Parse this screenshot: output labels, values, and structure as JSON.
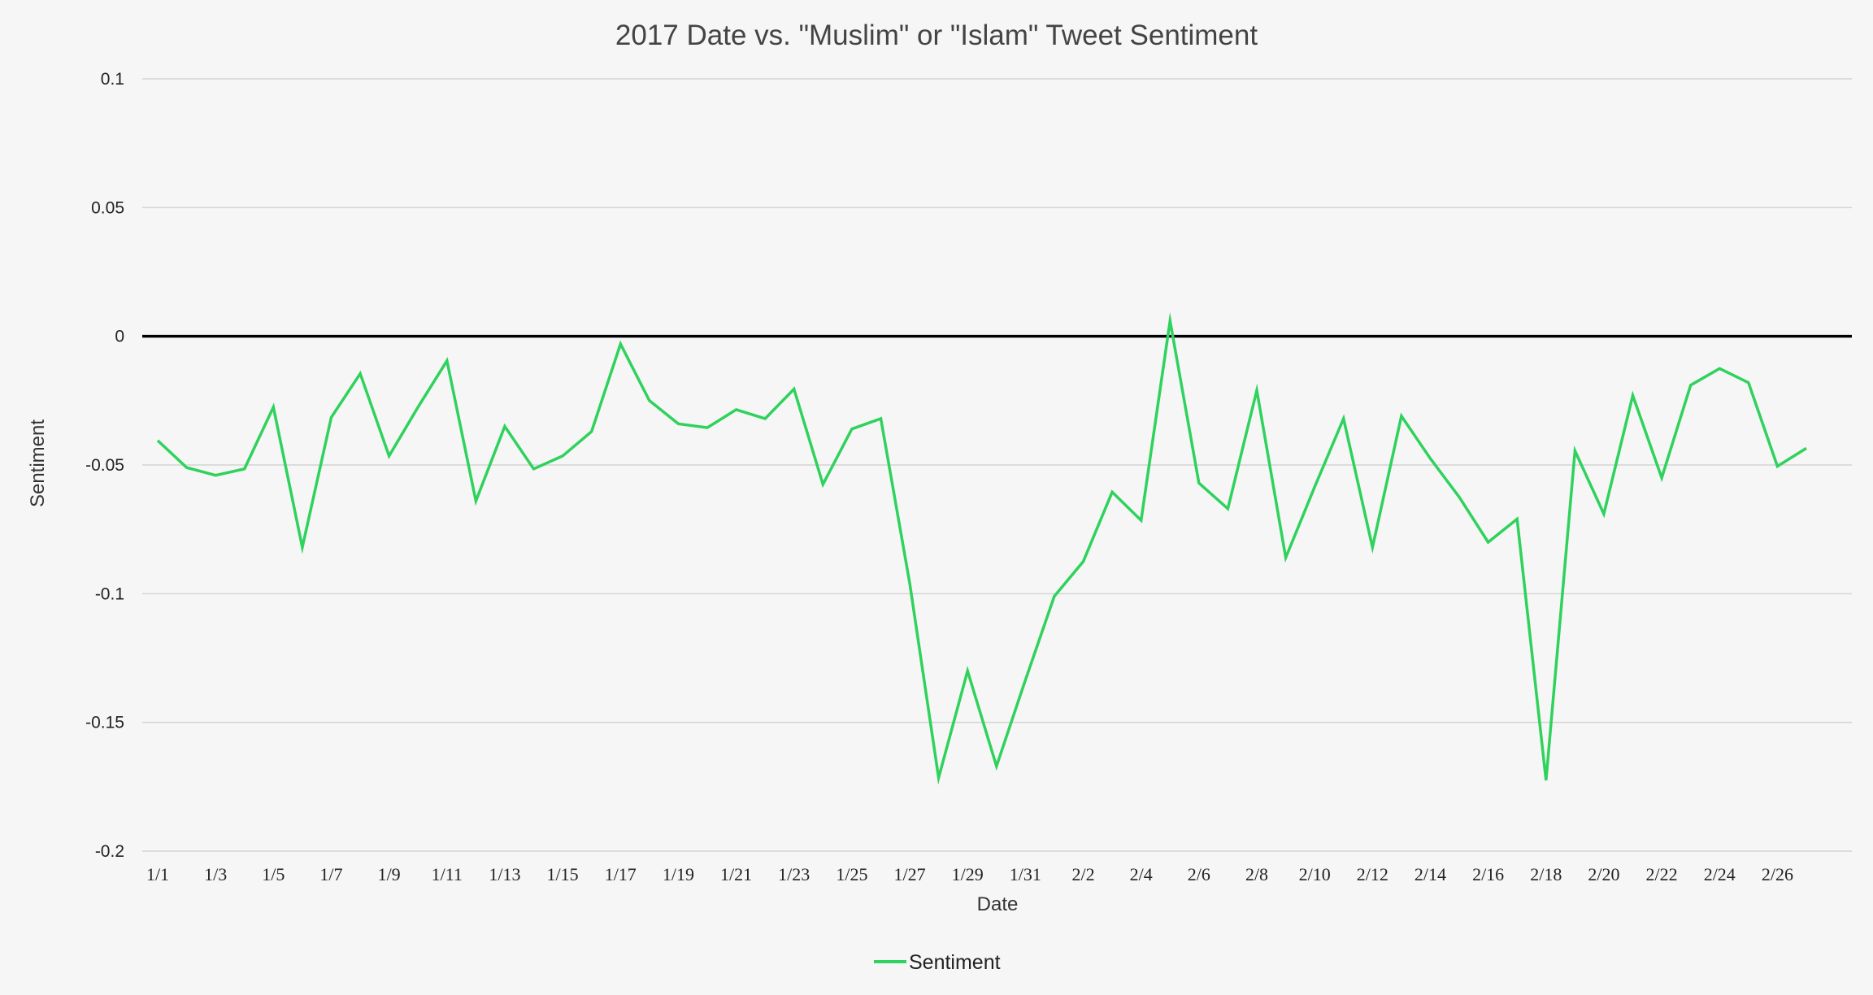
{
  "chart_data": {
    "type": "line",
    "title": "2017 Date vs. \"Muslim\" or \"Islam\" Tweet Sentiment",
    "xlabel": "Date",
    "ylabel": "Sentiment",
    "ylim": [
      -0.2,
      0.1
    ],
    "yticks": [
      "0.1",
      "0.05",
      "0",
      "-0.05",
      "-0.1",
      "-0.15",
      "-0.2"
    ],
    "ytick_values": [
      0.1,
      0.05,
      0,
      -0.05,
      -0.1,
      -0.15,
      -0.2
    ],
    "zero_line": true,
    "grid": true,
    "legend_position": "bottom",
    "colors": {
      "series": "#2fd25c",
      "zero_line": "#000000",
      "grid": "#d4d4d4",
      "background": "#f6f6f6"
    },
    "categories": [
      "1/1",
      "1/2",
      "1/3",
      "1/4",
      "1/5",
      "1/6",
      "1/7",
      "1/8",
      "1/9",
      "1/10",
      "1/11",
      "1/12",
      "1/13",
      "1/14",
      "1/15",
      "1/16",
      "1/17",
      "1/18",
      "1/19",
      "1/20",
      "1/21",
      "1/22",
      "1/23",
      "1/24",
      "1/25",
      "1/26",
      "1/27",
      "1/28",
      "1/29",
      "1/30",
      "1/31",
      "2/1",
      "2/2",
      "2/3",
      "2/4",
      "2/5",
      "2/6",
      "2/7",
      "2/8",
      "2/9",
      "2/10",
      "2/11",
      "2/12",
      "2/13",
      "2/14",
      "2/15",
      "2/16",
      "2/17",
      "2/18",
      "2/19",
      "2/20",
      "2/21",
      "2/22",
      "2/23",
      "2/24",
      "2/25",
      "2/26",
      "2/27"
    ],
    "xtick_labels": [
      "1/1",
      "1/3",
      "1/5",
      "1/7",
      "1/9",
      "1/11",
      "1/13",
      "1/15",
      "1/17",
      "1/19",
      "1/21",
      "1/23",
      "1/25",
      "1/27",
      "1/29",
      "1/31",
      "2/2",
      "2/4",
      "2/6",
      "2/8",
      "2/10",
      "2/12",
      "2/14",
      "2/16",
      "2/18",
      "2/20",
      "2/22",
      "2/24",
      "2/26"
    ],
    "series": [
      {
        "name": "Sentiment",
        "values": [
          -0.0405,
          -0.051,
          -0.054,
          -0.0515,
          -0.0275,
          -0.082,
          -0.0315,
          -0.0145,
          -0.0465,
          -0.0275,
          -0.0095,
          -0.064,
          -0.035,
          -0.0515,
          -0.0465,
          -0.037,
          -0.003,
          -0.025,
          -0.034,
          -0.0355,
          -0.0285,
          -0.032,
          -0.0205,
          -0.0575,
          -0.036,
          -0.032,
          -0.096,
          -0.1715,
          -0.13,
          -0.167,
          -0.1335,
          -0.101,
          -0.0875,
          -0.0605,
          -0.0715,
          0.006,
          -0.057,
          -0.067,
          -0.021,
          -0.086,
          -0.0585,
          -0.032,
          -0.082,
          -0.031,
          -0.0475,
          -0.0625,
          -0.08,
          -0.071,
          -0.1725,
          -0.0445,
          -0.069,
          -0.023,
          -0.055,
          -0.019,
          -0.0125,
          -0.018,
          -0.0505,
          -0.0435
        ]
      }
    ]
  }
}
